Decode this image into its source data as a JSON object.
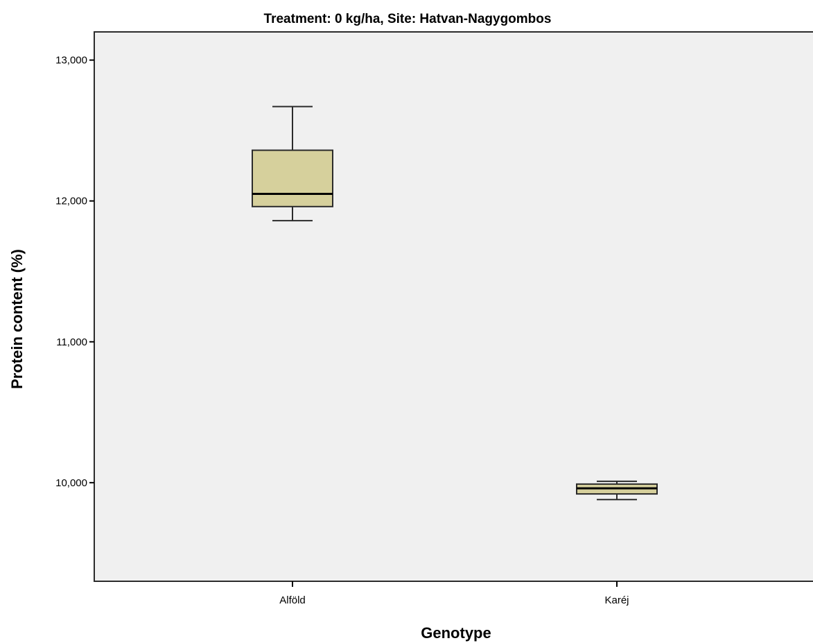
{
  "chart_data": {
    "type": "box",
    "title": "Treatment: 0 kg/ha, Site: Hatvan-Nagygombos",
    "xlabel": "Genotype",
    "ylabel": "Protein content (%)",
    "categories": [
      "Alföld",
      "Karéj"
    ],
    "boxes": [
      {
        "category": "Alföld",
        "min": 11.86,
        "q1": 11.96,
        "median": 12.05,
        "q3": 12.36,
        "max": 12.67
      },
      {
        "category": "Karéj",
        "min": 9.88,
        "q1": 9.92,
        "median": 9.96,
        "q3": 9.99,
        "max": 10.01
      }
    ],
    "ylim": [
      9.3,
      13.2
    ],
    "yticks": [
      10,
      11,
      12,
      13
    ],
    "ytick_labels": [
      "10,000",
      "11,000",
      "12,000",
      "13,000"
    ],
    "grid": false,
    "colors": {
      "box_fill": "#d6d09c",
      "plot_background": "#f0f0f0",
      "stroke": "#2b2b2b"
    }
  }
}
